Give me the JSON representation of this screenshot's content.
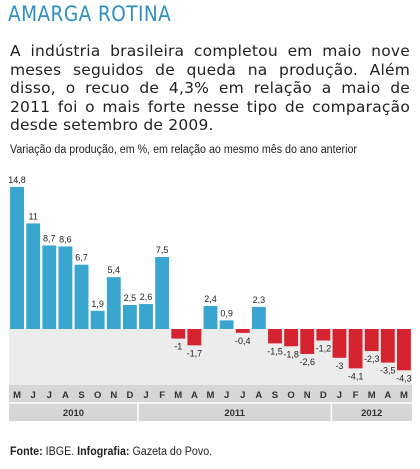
{
  "header": {
    "title": "AMARGA ROTINA",
    "body": "A indústria brasileira completou em maio nove meses seguidos de queda na produção. Além disso, o recuo de 4,3% em relação a maio de 2011 foi o mais forte nesse tipo de comparação desde setembro de 2009."
  },
  "footer": {
    "source_label": "Fonte:",
    "source_value": "IBGE.",
    "infographic_label": "Infografia:",
    "infographic_value": "Gazeta do Povo."
  },
  "colors": {
    "positive": "#3aa6d0",
    "negative": "#d5232f",
    "title": "#2f8fbf",
    "axis_band": "#d6d6d6",
    "band_light": "#ececec"
  },
  "chart_data": {
    "type": "bar",
    "title": "Variação da produção, em %, em relação ao mesmo mês do ano anterior",
    "xlabel": "",
    "ylabel": "",
    "categories": [
      "M",
      "J",
      "J",
      "A",
      "S",
      "O",
      "N",
      "D",
      "J",
      "F",
      "M",
      "A",
      "M",
      "J",
      "J",
      "A",
      "S",
      "O",
      "N",
      "D",
      "J",
      "F",
      "M",
      "A",
      "M"
    ],
    "years": [
      {
        "label": "2010",
        "start": 0,
        "end": 7
      },
      {
        "label": "2011",
        "start": 8,
        "end": 19
      },
      {
        "label": "2012",
        "start": 20,
        "end": 24
      }
    ],
    "values": [
      14.8,
      11,
      8.7,
      8.6,
      6.7,
      1.9,
      5.4,
      2.5,
      2.6,
      7.5,
      -1,
      -1.7,
      2.4,
      0.9,
      -0.4,
      2.3,
      -1.5,
      -1.8,
      -2.6,
      -1.2,
      -3,
      -4.1,
      -2.3,
      -3.5,
      -4.3
    ],
    "value_labels": [
      "14,8",
      "11",
      "8,7",
      "8,6",
      "6,7",
      "1,9",
      "5,4",
      "2,5",
      "2,6",
      "7,5",
      "-1",
      "-1,7",
      "2,4",
      "0,9",
      "-0,4",
      "2,3",
      "-1,5",
      "-1,8",
      "-2,6",
      "-1,2",
      "-3",
      "-4,1",
      "-2,3",
      "-3,5",
      "-4,3"
    ],
    "grid": false
  }
}
